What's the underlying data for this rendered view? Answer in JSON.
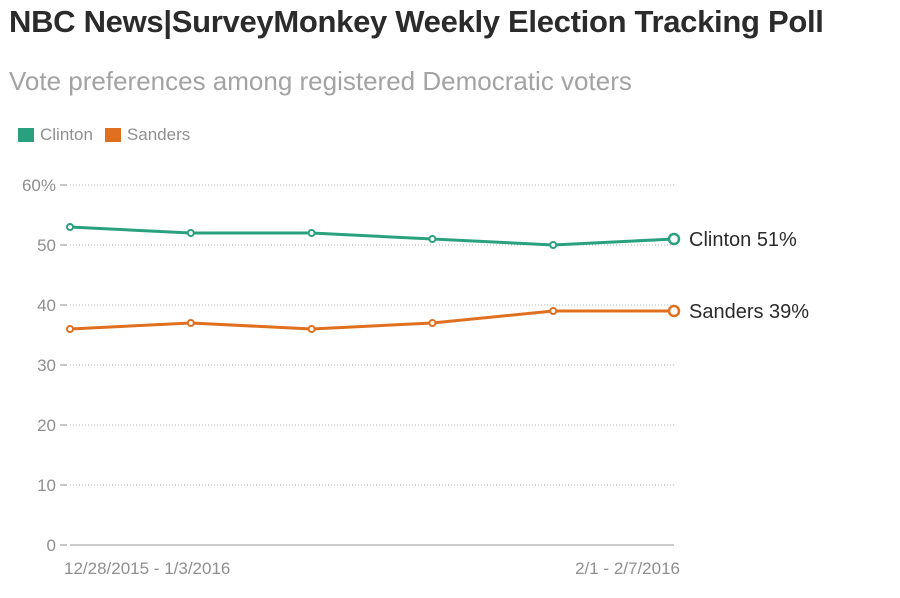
{
  "header": {
    "title": "NBC News|SurveyMonkey Weekly Election Tracking Poll",
    "subtitle": "Vote preferences among registered Democratic voters"
  },
  "legend": [
    {
      "label": "Clinton",
      "color": "#2aa17e"
    },
    {
      "label": "Sanders",
      "color": "#e07020"
    }
  ],
  "chart_data": {
    "type": "line",
    "title": "NBC News|SurveyMonkey Weekly Election Tracking Poll",
    "subtitle": "Vote preferences among registered Democratic voters",
    "xlabel": "",
    "ylabel": "",
    "ylim": [
      0,
      60
    ],
    "yticks": [
      0,
      10,
      20,
      30,
      40,
      50,
      60
    ],
    "ytick_labels": [
      "0",
      "10",
      "20",
      "30",
      "40",
      "50",
      "60%"
    ],
    "x": [
      "12/28/2015 - 1/3/2016",
      "",
      "",
      "",
      "",
      "2/1 - 2/7/2016"
    ],
    "x_tick_labels_shown": [
      "12/28/2015 - 1/3/2016",
      "2/1 - 2/7/2016"
    ],
    "grid": true,
    "legend_position": "top-left",
    "series": [
      {
        "name": "Clinton",
        "color": "#2aa17e",
        "values": [
          53,
          52,
          52,
          51,
          50,
          51
        ],
        "end_label": "Clinton 51%"
      },
      {
        "name": "Sanders",
        "color": "#e07020",
        "values": [
          36,
          37,
          36,
          37,
          39,
          39
        ],
        "end_label": "Sanders 39%"
      }
    ]
  }
}
